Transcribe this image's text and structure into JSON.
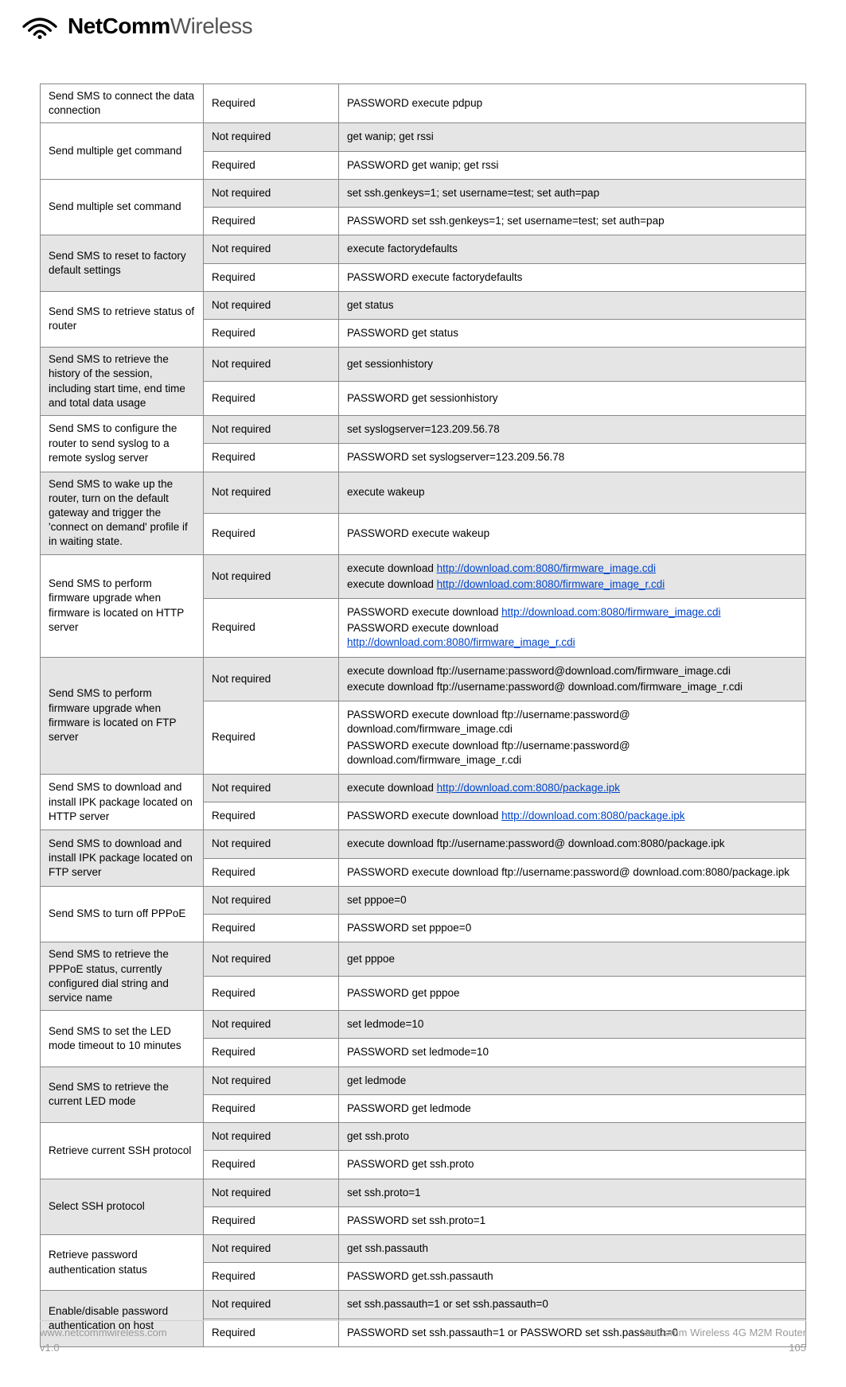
{
  "brand": {
    "bold": "NetComm",
    "light": "Wireless"
  },
  "footer": {
    "url": "www.netcommwireless.com",
    "version": "v1.0",
    "product": "NetComm Wireless 4G M2M Router",
    "page": "105"
  },
  "colors": {
    "shaded_bg": "#e5e5e5",
    "border": "#888888",
    "outer_border": "#000000",
    "link": "#0044cc",
    "footer_text": "#9a9a9a"
  },
  "rows": [
    {
      "desc": "Send SMS to connect the data connection",
      "rowspan": 1,
      "shaded": false,
      "cells": [
        {
          "req": "Required",
          "cmd": [
            {
              "t": "PASSWORD execute pdpup"
            }
          ],
          "shaded": false
        }
      ]
    },
    {
      "desc": "Send multiple get command",
      "rowspan": 2,
      "shaded": false,
      "cells": [
        {
          "req": "Not required",
          "cmd": [
            {
              "t": "get wanip; get rssi"
            }
          ],
          "shaded": true
        },
        {
          "req": "Required",
          "cmd": [
            {
              "t": "PASSWORD get wanip; get rssi"
            }
          ],
          "shaded": false
        }
      ]
    },
    {
      "desc": "Send multiple set command",
      "rowspan": 2,
      "shaded": false,
      "cells": [
        {
          "req": "Not required",
          "cmd": [
            {
              "t": "set ssh.genkeys=1; set username=test; set auth=pap"
            }
          ],
          "shaded": true
        },
        {
          "req": "Required",
          "cmd": [
            {
              "t": "PASSWORD set ssh.genkeys=1; set username=test; set auth=pap"
            }
          ],
          "shaded": false
        }
      ]
    },
    {
      "desc": "Send SMS to reset to factory default settings",
      "rowspan": 2,
      "shaded": true,
      "cells": [
        {
          "req": "Not required",
          "cmd": [
            {
              "t": "execute factorydefaults"
            }
          ],
          "shaded": true
        },
        {
          "req": "Required",
          "cmd": [
            {
              "t": "PASSWORD execute factorydefaults"
            }
          ],
          "shaded": false
        }
      ]
    },
    {
      "desc": "Send SMS to retrieve status of router",
      "rowspan": 2,
      "shaded": false,
      "cells": [
        {
          "req": "Not required",
          "cmd": [
            {
              "t": "get status"
            }
          ],
          "shaded": true
        },
        {
          "req": "Required",
          "cmd": [
            {
              "t": "PASSWORD get status"
            }
          ],
          "shaded": false
        }
      ]
    },
    {
      "desc": "Send SMS to retrieve the history of the session, including start time, end time and total data usage",
      "rowspan": 2,
      "shaded": true,
      "cells": [
        {
          "req": "Not required",
          "cmd": [
            {
              "t": "get sessionhistory"
            }
          ],
          "shaded": true
        },
        {
          "req": "Required",
          "cmd": [
            {
              "t": "PASSWORD get sessionhistory"
            }
          ],
          "shaded": false
        }
      ]
    },
    {
      "desc": "Send SMS to configure the router to send syslog to a remote syslog server",
      "rowspan": 2,
      "shaded": false,
      "cells": [
        {
          "req": "Not required",
          "cmd": [
            {
              "t": "set syslogserver=123.209.56.78"
            }
          ],
          "shaded": true
        },
        {
          "req": "Required",
          "cmd": [
            {
              "t": "PASSWORD set syslogserver=123.209.56.78"
            }
          ],
          "shaded": false
        }
      ]
    },
    {
      "desc": "Send SMS to wake up the router, turn on the default gateway and trigger the 'connect on demand' profile if in waiting state.",
      "rowspan": 2,
      "shaded": true,
      "cells": [
        {
          "req": "Not required",
          "cmd": [
            {
              "t": "execute wakeup"
            }
          ],
          "shaded": true
        },
        {
          "req": "Required",
          "cmd": [
            {
              "t": "PASSWORD execute wakeup"
            }
          ],
          "shaded": false
        }
      ]
    },
    {
      "desc": "Send SMS to perform firmware upgrade when firmware is located on HTTP server",
      "rowspan": 2,
      "shaded": false,
      "cells": [
        {
          "req": "Not required",
          "shaded": true,
          "cmd": [
            {
              "t": "execute download ",
              "l": "http://download.com:8080/firmware_image.cdi"
            },
            {
              "t": "execute download ",
              "l": "http://download.com:8080/firmware_image_r.cdi"
            }
          ]
        },
        {
          "req": "Required",
          "shaded": false,
          "cmd": [
            {
              "t": "PASSWORD execute download ",
              "l": "http://download.com:8080/firmware_image.cdi"
            },
            {
              "t": "PASSWORD execute download ",
              "br": true,
              "l": "http://download.com:8080/firmware_image_r.cdi"
            }
          ]
        }
      ]
    },
    {
      "desc": "Send SMS to perform firmware upgrade when firmware is located on FTP server",
      "rowspan": 2,
      "shaded": true,
      "cells": [
        {
          "req": "Not required",
          "shaded": true,
          "cmd": [
            {
              "t": "execute download ftp://username:password@download.com/firmware_image.cdi"
            },
            {
              "t": "execute download ftp://username:password@ download.com/firmware_image_r.cdi"
            }
          ]
        },
        {
          "req": "Required",
          "shaded": false,
          "cmd": [
            {
              "t": "PASSWORD execute download ftp://username:password@ download.com/firmware_image.cdi"
            },
            {
              "t": "PASSWORD execute download ftp://username:password@ download.com/firmware_image_r.cdi"
            }
          ]
        }
      ]
    },
    {
      "desc": "Send SMS to download and install IPK package located on HTTP server",
      "rowspan": 2,
      "shaded": false,
      "cells": [
        {
          "req": "Not required",
          "shaded": true,
          "cmd": [
            {
              "t": "execute download ",
              "l": "http://download.com:8080/package.ipk"
            }
          ]
        },
        {
          "req": "Required",
          "shaded": false,
          "cmd": [
            {
              "t": "PASSWORD execute download ",
              "l": "http://download.com:8080/package.ipk"
            }
          ]
        }
      ]
    },
    {
      "desc": "Send SMS to download and install IPK package located on FTP server",
      "rowspan": 2,
      "shaded": true,
      "cells": [
        {
          "req": "Not required",
          "shaded": true,
          "cmd": [
            {
              "t": "execute download ftp://username:password@ download.com:8080/package.ipk"
            }
          ]
        },
        {
          "req": "Required",
          "shaded": false,
          "cmd": [
            {
              "t": "PASSWORD execute download ftp://username:password@ download.com:8080/package.ipk"
            }
          ]
        }
      ]
    },
    {
      "desc": "Send SMS to turn off PPPoE",
      "rowspan": 2,
      "shaded": false,
      "cells": [
        {
          "req": "Not required",
          "cmd": [
            {
              "t": "set pppoe=0"
            }
          ],
          "shaded": true
        },
        {
          "req": "Required",
          "cmd": [
            {
              "t": "PASSWORD set pppoe=0"
            }
          ],
          "shaded": false
        }
      ]
    },
    {
      "desc": "Send SMS to retrieve the PPPoE status, currently configured dial string and service name",
      "rowspan": 2,
      "shaded": true,
      "cells": [
        {
          "req": "Not required",
          "cmd": [
            {
              "t": "get pppoe"
            }
          ],
          "shaded": true
        },
        {
          "req": "Required",
          "cmd": [
            {
              "t": "PASSWORD get pppoe"
            }
          ],
          "shaded": false
        }
      ]
    },
    {
      "desc": "Send SMS to set the LED mode timeout to 10 minutes",
      "rowspan": 2,
      "shaded": false,
      "cells": [
        {
          "req": "Not required",
          "cmd": [
            {
              "t": "set ledmode=10"
            }
          ],
          "shaded": true
        },
        {
          "req": "Required",
          "cmd": [
            {
              "t": "PASSWORD set ledmode=10"
            }
          ],
          "shaded": false
        }
      ]
    },
    {
      "desc": "Send SMS to retrieve the current LED mode",
      "rowspan": 2,
      "shaded": true,
      "cells": [
        {
          "req": "Not required",
          "cmd": [
            {
              "t": "get ledmode"
            }
          ],
          "shaded": true
        },
        {
          "req": "Required",
          "cmd": [
            {
              "t": "PASSWORD get ledmode"
            }
          ],
          "shaded": false
        }
      ]
    },
    {
      "desc": "Retrieve current SSH protocol",
      "rowspan": 2,
      "shaded": false,
      "cells": [
        {
          "req": "Not required",
          "cmd": [
            {
              "t": "get ssh.proto"
            }
          ],
          "shaded": true
        },
        {
          "req": "Required",
          "cmd": [
            {
              "t": "PASSWORD get ssh.proto"
            }
          ],
          "shaded": false
        }
      ]
    },
    {
      "desc": "Select SSH protocol",
      "rowspan": 2,
      "shaded": true,
      "cells": [
        {
          "req": "Not required",
          "cmd": [
            {
              "t": "set ssh.proto=1"
            }
          ],
          "shaded": true
        },
        {
          "req": "Required",
          "cmd": [
            {
              "t": "PASSWORD set ssh.proto=1"
            }
          ],
          "shaded": false
        }
      ]
    },
    {
      "desc": "Retrieve password authentication status",
      "rowspan": 2,
      "shaded": false,
      "cells": [
        {
          "req": "Not required",
          "cmd": [
            {
              "t": "get ssh.passauth"
            }
          ],
          "shaded": true
        },
        {
          "req": "Required",
          "cmd": [
            {
              "t": "PASSWORD get.ssh.passauth"
            }
          ],
          "shaded": false
        }
      ]
    },
    {
      "desc": "Enable/disable password authentication on host",
      "rowspan": 2,
      "shaded": true,
      "cells": [
        {
          "req": "Not required",
          "cmd": [
            {
              "t": "set ssh.passauth=1 or set ssh.passauth=0"
            }
          ],
          "shaded": true
        },
        {
          "req": "Required",
          "cmd": [
            {
              "t": "PASSWORD set ssh.passauth=1 or PASSWORD set ssh.passauth=0"
            }
          ],
          "shaded": false
        }
      ]
    }
  ]
}
